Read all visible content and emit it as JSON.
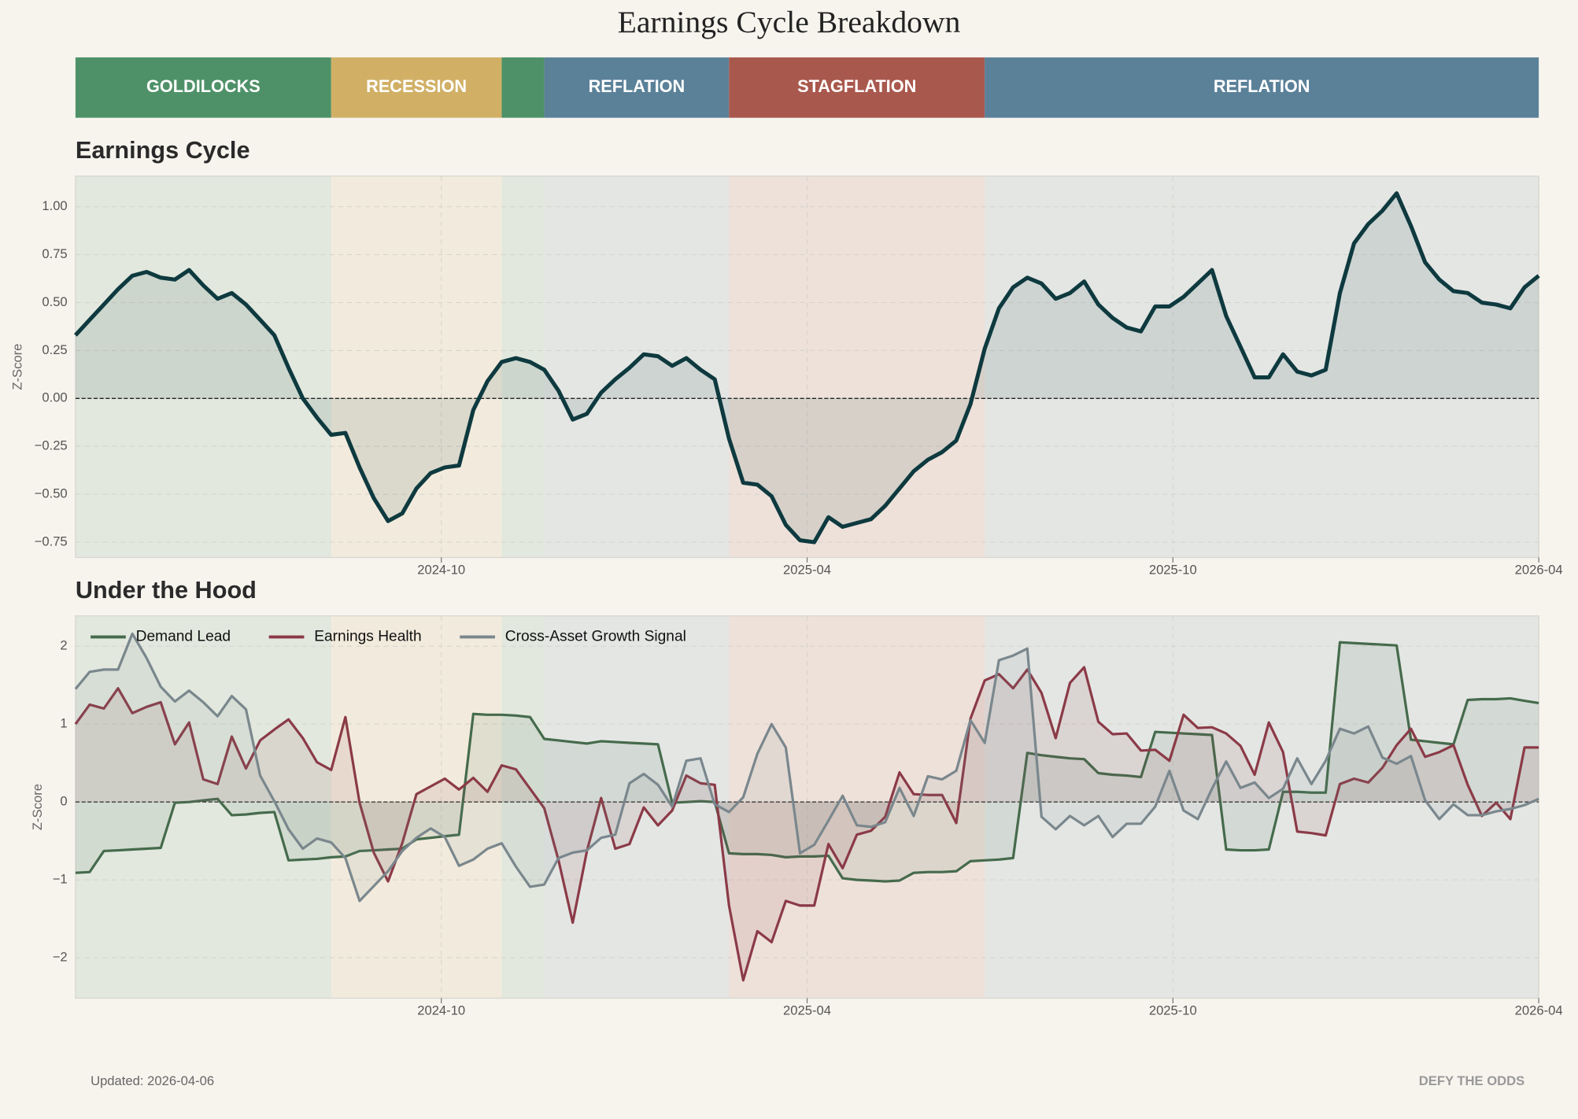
{
  "title": "Earnings Cycle Breakdown",
  "regimes": [
    {
      "label": "GOLDILOCKS",
      "color": "#4e9168",
      "points": 18
    },
    {
      "label": "RECESSION",
      "color": "#d1b066",
      "points": 12
    },
    {
      "color": "#4e9168",
      "points": 3
    },
    {
      "label": "REFLATION",
      "color": "#5b8199",
      "points": 13
    },
    {
      "label": "STAGFLATION",
      "color": "#a9584d",
      "points": 18
    },
    {
      "label": "REFLATION",
      "color": "#5b8199",
      "points": 39
    }
  ],
  "chart_data": [
    {
      "type": "line",
      "title": "Earnings Cycle",
      "y_label": "Z-Score",
      "color": "#0e3a3f",
      "xlim": [
        "2024-04",
        "2026-04"
      ],
      "xticks": [
        "2024-10",
        "2025-04",
        "2025-10",
        "2026-04"
      ],
      "ylim": [
        -0.83,
        1.16
      ],
      "yticks": [
        {
          "value": -0.75,
          "label": "−0.75"
        },
        {
          "value": -0.5,
          "label": "−0.50"
        },
        {
          "value": -0.25,
          "label": "−0.25"
        },
        {
          "value": 0,
          "label": "0.00"
        },
        {
          "value": 0.25,
          "label": "0.25"
        },
        {
          "value": 0.5,
          "label": "0.50"
        },
        {
          "value": 0.75,
          "label": "0.75"
        },
        {
          "value": 1,
          "label": "1.00"
        }
      ],
      "grid": true,
      "values": [
        0.33,
        0.41,
        0.49,
        0.57,
        0.64,
        0.66,
        0.63,
        0.62,
        0.67,
        0.59,
        0.52,
        0.55,
        0.49,
        0.41,
        0.33,
        0.16,
        0.0,
        -0.1,
        -0.19,
        -0.18,
        -0.36,
        -0.52,
        -0.64,
        -0.6,
        -0.47,
        -0.39,
        -0.36,
        -0.35,
        -0.06,
        0.09,
        0.19,
        0.21,
        0.19,
        0.15,
        0.04,
        -0.11,
        -0.08,
        0.03,
        0.1,
        0.16,
        0.23,
        0.22,
        0.17,
        0.21,
        0.15,
        0.1,
        -0.21,
        -0.44,
        -0.45,
        -0.51,
        -0.66,
        -0.74,
        -0.75,
        -0.62,
        -0.67,
        -0.65,
        -0.63,
        -0.56,
        -0.47,
        -0.38,
        -0.32,
        -0.28,
        -0.22,
        -0.03,
        0.26,
        0.47,
        0.58,
        0.63,
        0.6,
        0.52,
        0.55,
        0.61,
        0.49,
        0.42,
        0.37,
        0.35,
        0.48,
        0.48,
        0.53,
        0.6,
        0.67,
        0.43,
        0.27,
        0.11,
        0.11,
        0.23,
        0.14,
        0.12,
        0.15,
        0.55,
        0.81,
        0.91,
        0.98,
        1.07,
        0.9,
        0.71,
        0.62,
        0.56,
        0.55,
        0.5,
        0.49,
        0.47,
        0.58,
        0.64
      ]
    },
    {
      "type": "line",
      "title": "Under the Hood",
      "y_label": "Z-Score",
      "legend": "upper left",
      "xlim": [
        "2024-04",
        "2026-04"
      ],
      "xticks": [
        "2024-10",
        "2025-04",
        "2025-10",
        "2026-04"
      ],
      "ylim": [
        -2.52,
        2.39
      ],
      "yticks": [
        {
          "value": -2,
          "label": "−2"
        },
        {
          "value": -1,
          "label": "−1"
        },
        0,
        1,
        2
      ],
      "grid": true,
      "series": [
        {
          "name": "Demand Lead",
          "color": "#456b4c",
          "values": [
            -0.91,
            -0.9,
            -0.63,
            -0.62,
            -0.61,
            -0.6,
            -0.59,
            -0.01,
            0.0,
            0.02,
            0.04,
            -0.17,
            -0.16,
            -0.14,
            -0.13,
            -0.75,
            -0.74,
            -0.73,
            -0.71,
            -0.7,
            -0.63,
            -0.62,
            -0.61,
            -0.6,
            -0.48,
            -0.46,
            -0.44,
            -0.42,
            1.13,
            1.12,
            1.12,
            1.11,
            1.09,
            0.81,
            0.79,
            0.77,
            0.75,
            0.78,
            0.77,
            0.76,
            0.75,
            0.74,
            -0.01,
            0.0,
            0.01,
            0.0,
            -0.66,
            -0.67,
            -0.67,
            -0.68,
            -0.71,
            -0.7,
            -0.7,
            -0.69,
            -0.98,
            -1.0,
            -1.01,
            -1.02,
            -1.01,
            -0.91,
            -0.9,
            -0.9,
            -0.89,
            -0.76,
            -0.75,
            -0.74,
            -0.72,
            0.63,
            0.6,
            0.58,
            0.56,
            0.55,
            0.37,
            0.35,
            0.34,
            0.32,
            0.9,
            0.89,
            0.88,
            0.87,
            0.86,
            -0.61,
            -0.62,
            -0.62,
            -0.61,
            0.13,
            0.13,
            0.12,
            0.12,
            2.05,
            2.04,
            2.03,
            2.02,
            2.01,
            0.8,
            0.78,
            0.76,
            0.74,
            1.31,
            1.32,
            1.32,
            1.33,
            1.3,
            1.27
          ]
        },
        {
          "name": "Earnings Health",
          "color": "#8b3a47",
          "values": [
            1.0,
            1.25,
            1.2,
            1.46,
            1.14,
            1.22,
            1.28,
            0.74,
            1.02,
            0.29,
            0.23,
            0.84,
            0.43,
            0.79,
            0.93,
            1.06,
            0.82,
            0.51,
            0.41,
            1.09,
            -0.01,
            -0.65,
            -1.02,
            -0.53,
            0.1,
            0.2,
            0.3,
            0.16,
            0.31,
            0.13,
            0.47,
            0.42,
            0.17,
            -0.08,
            -0.75,
            -1.55,
            -0.63,
            0.05,
            -0.6,
            -0.54,
            -0.07,
            -0.3,
            -0.11,
            0.34,
            0.24,
            0.22,
            -1.33,
            -2.29,
            -1.66,
            -1.8,
            -1.27,
            -1.33,
            -1.33,
            -0.54,
            -0.85,
            -0.42,
            -0.37,
            -0.19,
            0.38,
            0.1,
            0.09,
            0.09,
            -0.27,
            1.07,
            1.56,
            1.64,
            1.46,
            1.7,
            1.4,
            0.82,
            1.53,
            1.73,
            1.03,
            0.87,
            0.88,
            0.66,
            0.67,
            0.53,
            1.12,
            0.95,
            0.96,
            0.88,
            0.72,
            0.35,
            1.02,
            0.64,
            -0.38,
            -0.4,
            -0.43,
            0.23,
            0.3,
            0.25,
            0.44,
            0.73,
            0.94,
            0.58,
            0.64,
            0.73,
            0.22,
            -0.18,
            -0.01,
            -0.22,
            0.7,
            0.7
          ]
        },
        {
          "name": "Cross-Asset Growth Signal",
          "color": "#7a878d",
          "values": [
            1.45,
            1.67,
            1.7,
            1.7,
            2.16,
            1.85,
            1.48,
            1.29,
            1.43,
            1.28,
            1.1,
            1.36,
            1.19,
            0.34,
            0.01,
            -0.35,
            -0.6,
            -0.47,
            -0.52,
            -0.72,
            -1.27,
            -1.08,
            -0.89,
            -0.63,
            -0.46,
            -0.34,
            -0.45,
            -0.82,
            -0.74,
            -0.6,
            -0.53,
            -0.83,
            -1.09,
            -1.06,
            -0.72,
            -0.65,
            -0.62,
            -0.46,
            -0.42,
            0.24,
            0.36,
            0.22,
            -0.06,
            0.53,
            0.56,
            -0.03,
            -0.13,
            0.06,
            0.62,
            1.0,
            0.7,
            -0.66,
            -0.55,
            -0.24,
            0.08,
            -0.3,
            -0.32,
            -0.26,
            0.18,
            -0.18,
            0.33,
            0.29,
            0.4,
            1.05,
            0.76,
            1.82,
            1.88,
            1.97,
            -0.19,
            -0.35,
            -0.18,
            -0.3,
            -0.18,
            -0.45,
            -0.28,
            -0.28,
            -0.06,
            0.4,
            -0.11,
            -0.22,
            0.17,
            0.52,
            0.18,
            0.25,
            0.05,
            0.17,
            0.56,
            0.23,
            0.53,
            0.94,
            0.88,
            0.97,
            0.57,
            0.49,
            0.59,
            0.02,
            -0.22,
            -0.03,
            -0.17,
            -0.17,
            -0.12,
            -0.09,
            -0.04,
            0.04
          ]
        }
      ]
    }
  ],
  "footer": {
    "updated": "Updated: 2026-04-06",
    "brand": "DEFY THE ODDS"
  }
}
